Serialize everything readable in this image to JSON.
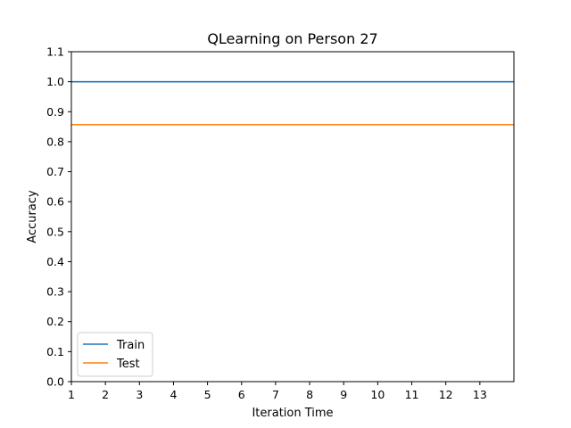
{
  "chart_data": {
    "type": "line",
    "title": "QLearning on Person 27",
    "xlabel": "Iteration Time",
    "ylabel": "Accuracy",
    "xlim": [
      1,
      14
    ],
    "ylim": [
      0.0,
      1.1
    ],
    "x_ticks": [
      "1",
      "2",
      "3",
      "4",
      "5",
      "6",
      "7",
      "8",
      "9",
      "10",
      "11",
      "12",
      "13"
    ],
    "y_ticks": [
      "0.0",
      "0.1",
      "0.2",
      "0.3",
      "0.4",
      "0.5",
      "0.6",
      "0.7",
      "0.8",
      "0.9",
      "1.0",
      "1.1"
    ],
    "x": [
      1,
      2,
      3,
      4,
      5,
      6,
      7,
      8,
      9,
      10,
      11,
      12,
      13,
      14
    ],
    "series": [
      {
        "name": "Train",
        "color": "#1f77b4",
        "values": [
          1.0,
          1.0,
          1.0,
          1.0,
          1.0,
          1.0,
          1.0,
          1.0,
          1.0,
          1.0,
          1.0,
          1.0,
          1.0,
          1.0
        ]
      },
      {
        "name": "Test",
        "color": "#ff7f0e",
        "values": [
          0.857,
          0.857,
          0.857,
          0.857,
          0.857,
          0.857,
          0.857,
          0.857,
          0.857,
          0.857,
          0.857,
          0.857,
          0.857,
          0.857
        ]
      }
    ],
    "legend_position": "lower-left",
    "grid": false
  }
}
